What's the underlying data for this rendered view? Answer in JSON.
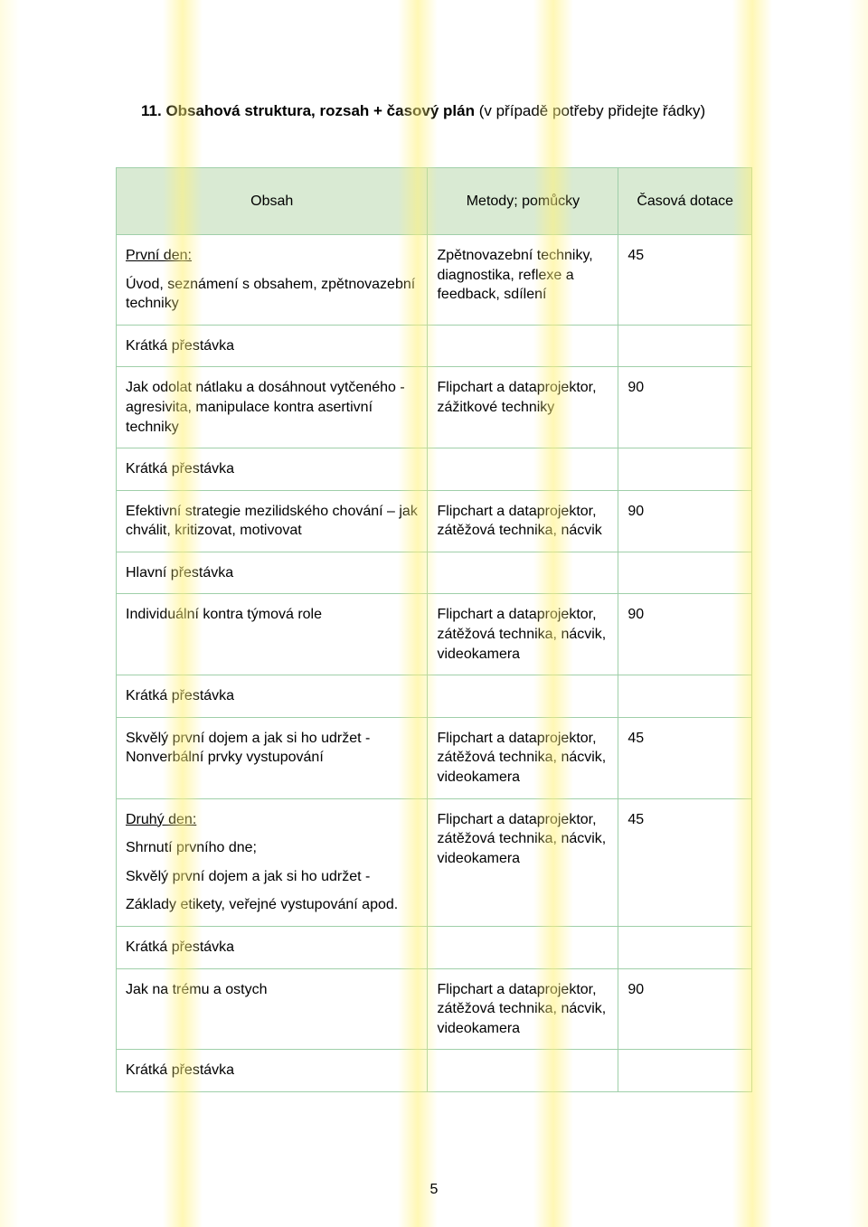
{
  "heading": {
    "number": "11.",
    "bold": "Obsahová struktura, rozsah + časový plán",
    "note": "(v případě potřeby přidejte řádky)"
  },
  "table": {
    "headers": {
      "col1": "Obsah",
      "col2": "Metody; pomůcky",
      "col3": "Časová dotace"
    },
    "header_bg": "#d9ead3",
    "border_color": "#9fcfa9",
    "rows": [
      {
        "obsah_lines": [
          {
            "text": "První den:",
            "underline": true
          },
          {
            "text": "Úvod, seznámení s obsahem, zpětnovazební techniky"
          }
        ],
        "metody": "Zpětnovazební techniky, diagnostika, reflexe a feedback, sdílení",
        "cas": "45"
      },
      {
        "obsah_lines": [
          {
            "text": "Krátká přestávka"
          }
        ],
        "metody": "",
        "cas": ""
      },
      {
        "obsah_lines": [
          {
            "text": "Jak odolat nátlaku a dosáhnout vytčeného - agresivita, manipulace kontra asertivní techniky"
          }
        ],
        "metody": "Flipchart a dataprojektor, zážitkové techniky",
        "cas": "90"
      },
      {
        "obsah_lines": [
          {
            "text": "Krátká přestávka"
          }
        ],
        "metody": "",
        "cas": ""
      },
      {
        "obsah_lines": [
          {
            "text": "Efektivní strategie mezilidského chování – jak chválit, kritizovat, motivovat"
          }
        ],
        "metody": "Flipchart a dataprojektor, zátěžová technika, nácvik",
        "cas": "90"
      },
      {
        "obsah_lines": [
          {
            "text": "Hlavní přestávka"
          }
        ],
        "metody": "",
        "cas": ""
      },
      {
        "obsah_lines": [
          {
            "text": "Individuální kontra týmová role"
          }
        ],
        "metody": "Flipchart a dataprojektor, zátěžová technika, nácvik, videokamera",
        "cas": "90"
      },
      {
        "obsah_lines": [
          {
            "text": "Krátká přestávka"
          }
        ],
        "metody": "",
        "cas": ""
      },
      {
        "obsah_lines": [
          {
            "text": "Skvělý první dojem a jak si ho udržet - Nonverbální prvky vystupování"
          }
        ],
        "metody": "Flipchart a dataprojektor, zátěžová technika, nácvik, videokamera",
        "cas": "45"
      },
      {
        "obsah_lines": [
          {
            "text": "Druhý den:",
            "underline": true
          },
          {
            "text": "Shrnutí prvního dne;"
          },
          {
            "text": "Skvělý první dojem a jak si ho udržet -"
          },
          {
            "text": "Základy etikety, veřejné vystupování apod."
          }
        ],
        "metody": "Flipchart a dataprojektor, zátěžová technika, nácvik, videokamera",
        "cas": "45"
      },
      {
        "obsah_lines": [
          {
            "text": "Krátká přestávka"
          }
        ],
        "metody": "",
        "cas": ""
      },
      {
        "obsah_lines": [
          {
            "text": "Jak na trému a ostych"
          }
        ],
        "metody": "Flipchart a dataprojektor, zátěžová technika, nácvik, videokamera",
        "cas": "90"
      },
      {
        "obsah_lines": [
          {
            "text": "Krátká přestávka"
          }
        ],
        "metody": "",
        "cas": ""
      }
    ]
  },
  "page_number": "5",
  "stripes": {
    "color": "rgba(255,241,120,0.55)"
  }
}
